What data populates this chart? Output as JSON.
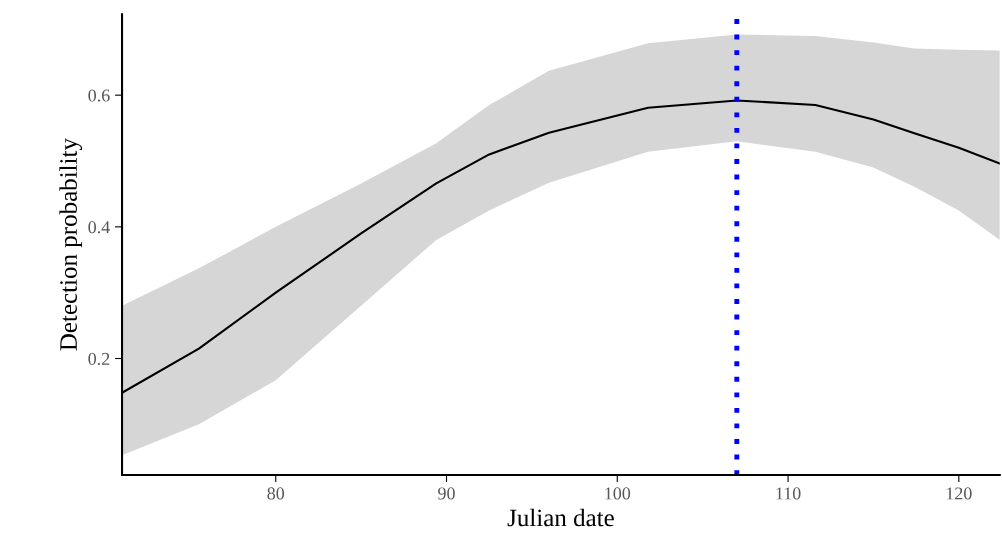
{
  "chart_data": {
    "type": "line",
    "xlabel": "Julian date",
    "ylabel": "Detection probability",
    "xlim": [
      71,
      122.4
    ],
    "ylim": [
      0.023,
      0.723
    ],
    "xticks": [
      80,
      90,
      100,
      110,
      120
    ],
    "yticks": [
      0.2,
      0.4,
      0.6
    ],
    "grid": false,
    "line_style": "solid",
    "marker": "none",
    "series": [
      {
        "color": "#000000",
        "x": [
          71,
          75.5,
          80,
          85,
          89.4,
          92.5,
          96,
          101.8,
          107,
          111.6,
          115,
          117.4,
          120,
          122.4
        ],
        "values": [
          0.148,
          0.215,
          0.3,
          0.39,
          0.466,
          0.51,
          0.543,
          0.581,
          0.592,
          0.585,
          0.563,
          0.542,
          0.52,
          0.496
        ],
        "upper": [
          0.28,
          0.337,
          0.4,
          0.466,
          0.527,
          0.585,
          0.637,
          0.679,
          0.692,
          0.69,
          0.68,
          0.671,
          0.669,
          0.668
        ],
        "lower": [
          0.053,
          0.1,
          0.167,
          0.28,
          0.38,
          0.425,
          0.467,
          0.514,
          0.53,
          0.514,
          0.49,
          0.461,
          0.425,
          0.38
        ]
      }
    ],
    "ref_lines": [
      {
        "axis": "x",
        "value": 107,
        "color": "#0000ff",
        "line_style": "dotted"
      }
    ]
  }
}
